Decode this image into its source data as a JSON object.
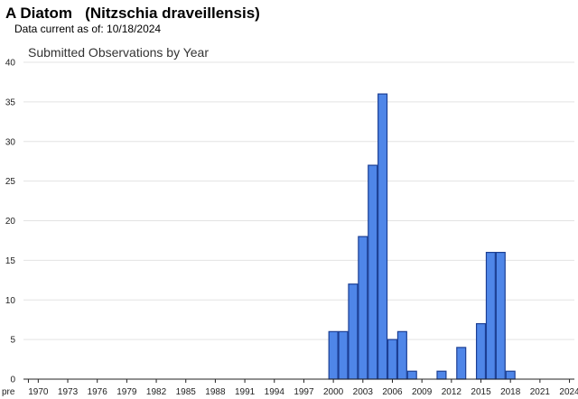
{
  "header": {
    "title": "A Diatom   (Nitzschia draveillensis)",
    "data_current": "Data current as of: 10/18/2024"
  },
  "colors": {
    "bar_fill": "#4f86e8",
    "bar_stroke": "#1c3f94",
    "grid": "#e3e3e3",
    "axis": "#222222"
  },
  "chart_data": {
    "type": "bar",
    "title": "Submitted Observations by Year",
    "xlabel": "",
    "ylabel": "",
    "ylim": [
      0,
      40
    ],
    "yticks": [
      0,
      5,
      10,
      15,
      20,
      25,
      30,
      35,
      40
    ],
    "grid": true,
    "categories": [
      "pre",
      "1970",
      "1971",
      "1972",
      "1973",
      "1974",
      "1975",
      "1976",
      "1977",
      "1978",
      "1979",
      "1980",
      "1981",
      "1982",
      "1983",
      "1984",
      "1985",
      "1986",
      "1987",
      "1988",
      "1989",
      "1990",
      "1991",
      "1992",
      "1993",
      "1994",
      "1995",
      "1996",
      "1997",
      "1998",
      "1999",
      "2000",
      "2001",
      "2002",
      "2003",
      "2004",
      "2005",
      "2006",
      "2007",
      "2008",
      "2009",
      "2010",
      "2011",
      "2012",
      "2013",
      "2014",
      "2015",
      "2016",
      "2017",
      "2018",
      "2019",
      "2020",
      "2021",
      "2022",
      "2023",
      "2024"
    ],
    "values": [
      0,
      0,
      0,
      0,
      0,
      0,
      0,
      0,
      0,
      0,
      0,
      0,
      0,
      0,
      0,
      0,
      0,
      0,
      0,
      0,
      0,
      0,
      0,
      0,
      0,
      0,
      0,
      0,
      0,
      0,
      0,
      6,
      6,
      12,
      18,
      27,
      36,
      5,
      6,
      1,
      0,
      0,
      1,
      0,
      4,
      0,
      7,
      16,
      16,
      1,
      0,
      0,
      0,
      0,
      0,
      0
    ],
    "xtick_labels": [
      "pre",
      "1970",
      "1973",
      "1976",
      "1979",
      "1982",
      "1985",
      "1988",
      "1991",
      "1994",
      "1997",
      "2000",
      "2003",
      "2006",
      "2009",
      "2012",
      "2015",
      "2018",
      "2021",
      "2024"
    ]
  }
}
